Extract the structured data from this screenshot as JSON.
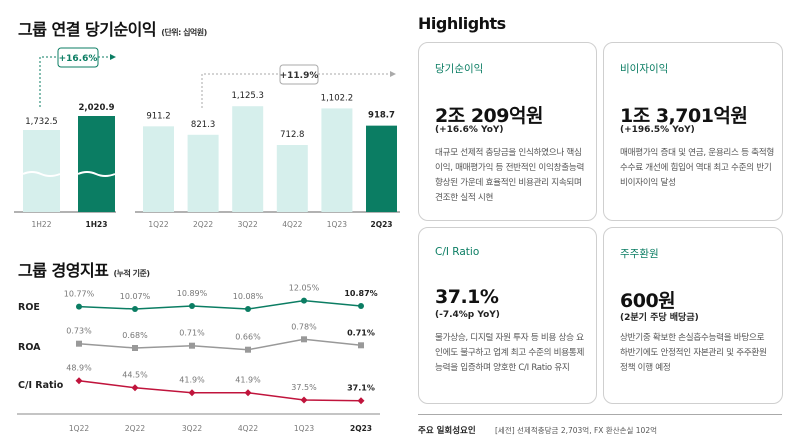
{
  "net_income": {
    "title": "그룹 연결 당기순이익",
    "unit": "(단위: 십억원)",
    "yoy_growth": "+16.6%",
    "qoq_growth": "+11.9%"
  },
  "metrics": {
    "title": "그룹 경영지표",
    "unit": "(누적 기준)"
  },
  "highlights": {
    "title": "Highlights",
    "cards": [
      {
        "label": "당기순이익",
        "value": "2조 209억원",
        "change": "(+16.6% YoY)",
        "desc": "대규모 선제적 충당금을 인식하였으나 핵심이익, 매매평가익 등 전반적인 이익창출능력 향상된 가운데 효율적인 비용관리 지속되며 견조한 실적 시현"
      },
      {
        "label": "비이자이익",
        "value": "1조 3,701억원",
        "change": "(+196.5% YoY)",
        "desc": "매매평가익 증대 및 연금, 운용리스 등 축적형 수수료 개선에 힘입어 역대 최고 수준의 반기 비이자이익 달성"
      },
      {
        "label": "C/I Ratio",
        "value": "37.1%",
        "change": "(-7.4%p YoY)",
        "desc": "물가상승, 디지털 자원 투자 등 비용 상승 요인에도 불구하고 업계 최고 수준의 비용통제능력을 입증하며 양호한 C/I Ratio 유지"
      },
      {
        "label": "주주환원",
        "value": "600원",
        "change": "(2분기 주당 배당금)",
        "desc": "상반기중 확보한 손실흡수능력을 바탕으로 하반기에도 안정적인 자본관리 및 주주환원정책 이행 예정"
      }
    ]
  },
  "footnote": {
    "label": "주요 일회성요인",
    "text": "[세전]  선제적충당금 2,703억, FX 환산손실 102억"
  },
  "colors": {
    "accent": "#0b7d63",
    "light": "#d6efec",
    "roa": "#999999",
    "ci": "#c0143c"
  },
  "chart_data": [
    {
      "type": "bar",
      "title": "그룹 연결 당기순이익",
      "categories": [
        "1H22",
        "1H23"
      ],
      "values": [
        1732.5,
        2020.9
      ],
      "labels": [
        "1,732.5",
        "2,020.9"
      ],
      "axis_break": true
    },
    {
      "type": "bar",
      "title": "그룹 연결 당기순이익",
      "categories": [
        "1Q22",
        "2Q22",
        "3Q22",
        "4Q22",
        "1Q23",
        "2Q23"
      ],
      "values": [
        911.2,
        821.3,
        1125.3,
        712.8,
        1102.2,
        918.7
      ],
      "labels": [
        "911.2",
        "821.3",
        "1,125.3",
        "712.8",
        "1,102.2",
        "918.7"
      ],
      "ylim": [
        0,
        1200
      ]
    },
    {
      "type": "line",
      "title": "그룹 경영지표",
      "categories": [
        "1Q22",
        "2Q22",
        "3Q22",
        "4Q22",
        "1Q23",
        "2Q23"
      ],
      "series": [
        {
          "name": "ROE",
          "values": [
            10.77,
            10.07,
            10.89,
            10.08,
            12.05,
            10.87
          ],
          "labels": [
            "10.77%",
            "10.07%",
            "10.89%",
            "10.08%",
            "12.05%",
            "10.87%"
          ]
        },
        {
          "name": "ROA",
          "values": [
            0.73,
            0.68,
            0.71,
            0.66,
            0.78,
            0.71
          ],
          "labels": [
            "0.73%",
            "0.68%",
            "0.71%",
            "0.66%",
            "0.78%",
            "0.71%"
          ]
        },
        {
          "name": "C/I Ratio",
          "values": [
            48.9,
            44.5,
            41.9,
            41.9,
            37.5,
            37.1
          ],
          "labels": [
            "48.9%",
            "44.5%",
            "41.9%",
            "41.9%",
            "37.5%",
            "37.1%"
          ]
        }
      ]
    }
  ]
}
